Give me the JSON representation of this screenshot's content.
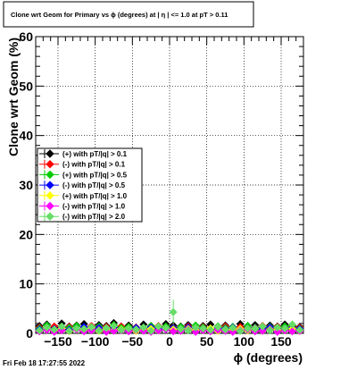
{
  "chart_data": {
    "type": "scatter",
    "title": "Clone wrt Geom for Primary vs ϕ (degrees) at | η | <= 1.0 at pT > 0.11",
    "xlabel": "ϕ (degrees)",
    "ylabel": "Clone wrt Geom (%)",
    "xlim": [
      -180,
      180
    ],
    "ylim": [
      0,
      60
    ],
    "x_ticks": [
      -150,
      -100,
      -50,
      0,
      50,
      100,
      150
    ],
    "y_ticks": [
      0,
      10,
      20,
      30,
      40,
      50,
      60
    ],
    "grid": true,
    "legend_placement": "center-left",
    "series": [
      {
        "name": "(+) with pT/|q| > 0.1",
        "color": "#000000",
        "marker": "diamond",
        "x": [
          -175,
          -165,
          -155,
          -145,
          -135,
          -125,
          -115,
          -105,
          -95,
          -85,
          -75,
          -65,
          -55,
          -45,
          -35,
          -25,
          -15,
          -5,
          5,
          15,
          25,
          35,
          45,
          55,
          65,
          75,
          85,
          95,
          105,
          115,
          125,
          135,
          145,
          155,
          165,
          175
        ],
        "y": [
          1.5,
          1.8,
          1.2,
          2.0,
          1.4,
          1.6,
          1.9,
          1.3,
          1.7,
          1.5,
          2.1,
          1.4,
          1.6,
          1.2,
          1.8,
          1.5,
          1.3,
          1.9,
          1.6,
          1.4,
          1.7,
          1.2,
          1.5,
          1.8,
          1.4,
          1.6,
          1.3,
          1.9,
          1.5,
          1.7,
          1.2,
          1.6,
          1.4,
          1.8,
          1.5,
          1.3
        ]
      },
      {
        "name": "(-) with pT/|q| > 0.1",
        "color": "#ff0000",
        "marker": "diamond",
        "x": [
          -175,
          -165,
          -155,
          -145,
          -135,
          -125,
          -115,
          -105,
          -95,
          -85,
          -75,
          -65,
          -55,
          -45,
          -35,
          -25,
          -15,
          -5,
          5,
          15,
          25,
          35,
          45,
          55,
          65,
          75,
          85,
          95,
          105,
          115,
          125,
          135,
          145,
          155,
          165,
          175
        ],
        "y": [
          1.2,
          1.0,
          1.4,
          1.1,
          1.3,
          0.9,
          1.2,
          1.5,
          1.0,
          1.3,
          1.1,
          1.4,
          0.9,
          1.2,
          1.0,
          1.3,
          1.5,
          1.1,
          1.2,
          1.0,
          1.4,
          1.1,
          1.3,
          0.9,
          1.2,
          1.4,
          1.0,
          1.3,
          1.1,
          1.2,
          1.5,
          1.0,
          1.3,
          1.1,
          1.4,
          1.2
        ]
      },
      {
        "name": "(+) with pT/|q| > 0.5",
        "color": "#00cc00",
        "marker": "diamond",
        "x": [
          -175,
          -165,
          -155,
          -145,
          -135,
          -125,
          -115,
          -105,
          -95,
          -85,
          -75,
          -65,
          -55,
          -45,
          -35,
          -25,
          -15,
          -5,
          5,
          15,
          25,
          35,
          45,
          55,
          65,
          75,
          85,
          95,
          105,
          115,
          125,
          135,
          145,
          155,
          165,
          175
        ],
        "y": [
          1.0,
          1.6,
          0.8,
          1.3,
          1.1,
          1.5,
          0.9,
          1.2,
          1.4,
          1.0,
          1.7,
          1.1,
          1.3,
          0.8,
          1.2,
          1.5,
          1.0,
          1.4,
          1.1,
          1.3,
          0.9,
          1.6,
          1.2,
          1.0,
          1.4,
          1.1,
          1.3,
          0.9,
          1.5,
          1.2,
          1.0,
          1.3,
          1.1,
          1.4,
          1.6,
          1.0
        ]
      },
      {
        "name": "(-) with pT/|q| > 0.5",
        "color": "#0000ff",
        "marker": "diamond",
        "x": [
          -175,
          -165,
          -155,
          -145,
          -135,
          -125,
          -115,
          -105,
          -95,
          -85,
          -75,
          -65,
          -55,
          -45,
          -35,
          -25,
          -15,
          -5,
          5,
          15,
          25,
          35,
          45,
          55,
          65,
          75,
          85,
          95,
          105,
          115,
          125,
          135,
          145,
          155,
          165,
          175
        ],
        "y": [
          0.8,
          1.1,
          0.9,
          1.2,
          0.7,
          1.0,
          1.3,
          0.8,
          1.1,
          0.9,
          1.2,
          0.7,
          1.0,
          1.1,
          0.8,
          1.2,
          0.9,
          1.0,
          1.1,
          0.8,
          1.2,
          0.9,
          1.0,
          0.7,
          1.1,
          0.9,
          1.2,
          0.8,
          1.0,
          1.1,
          0.9,
          1.2,
          0.8,
          1.0,
          1.1,
          0.9
        ]
      },
      {
        "name": "(+) with pT/|q| > 1.0",
        "color": "#ffff00",
        "marker": "diamond",
        "x": [
          -175,
          -165,
          -155,
          -145,
          -135,
          -125,
          -115,
          -105,
          -95,
          -85,
          -75,
          -65,
          -55,
          -45,
          -35,
          -25,
          -15,
          -5,
          5,
          15,
          25,
          35,
          45,
          55,
          65,
          75,
          85,
          95,
          105,
          115,
          125,
          135,
          145,
          155,
          165,
          175
        ],
        "y": [
          0.5,
          0.9,
          0.6,
          1.0,
          0.4,
          0.8,
          0.7,
          1.1,
          0.5,
          0.9,
          0.6,
          0.8,
          1.0,
          0.5,
          0.7,
          0.9,
          0.6,
          1.0,
          0.8,
          0.5,
          0.9,
          0.7,
          0.6,
          1.0,
          0.5,
          0.8,
          0.7,
          0.9,
          0.6,
          1.0,
          0.5,
          0.8,
          0.7,
          0.6,
          0.9,
          0.5
        ]
      },
      {
        "name": "(-) with pT/|q| > 1.0",
        "color": "#ff00ff",
        "marker": "diamond",
        "x": [
          -175,
          -165,
          -155,
          -145,
          -135,
          -125,
          -115,
          -105,
          -95,
          -85,
          -75,
          -65,
          -55,
          -45,
          -35,
          -25,
          -15,
          -5,
          5,
          15,
          25,
          35,
          45,
          55,
          65,
          75,
          85,
          95,
          105,
          115,
          125,
          135,
          145,
          155,
          165,
          175
        ],
        "y": [
          0.4,
          0.7,
          0.3,
          0.6,
          0.5,
          0.8,
          0.4,
          0.6,
          0.7,
          0.3,
          0.5,
          0.6,
          0.4,
          0.7,
          0.5,
          0.3,
          0.6,
          0.8,
          0.4,
          0.5,
          0.7,
          0.3,
          0.6,
          0.4,
          0.7,
          0.5,
          0.3,
          0.6,
          0.8,
          0.4,
          0.5,
          0.7,
          0.3,
          0.6,
          0.4,
          0.5
        ]
      },
      {
        "name": "(-) with pT/|q| > 2.0",
        "color": "#66dd66",
        "marker": "diamond",
        "x": [
          -175,
          -165,
          -155,
          -145,
          -135,
          -125,
          -115,
          -105,
          -95,
          -85,
          -75,
          -65,
          -55,
          -45,
          -35,
          -25,
          -15,
          -5,
          5,
          15,
          25,
          35,
          45,
          55,
          65,
          75,
          85,
          95,
          105,
          115,
          125,
          135,
          145,
          155,
          165,
          175
        ],
        "y": [
          0.6,
          1.2,
          0.8,
          1.4,
          0.5,
          1.0,
          0.9,
          1.3,
          0.6,
          1.1,
          1.5,
          0.7,
          1.0,
          0.8,
          1.2,
          0.5,
          1.4,
          1.1,
          4.3,
          0.9,
          0.6,
          1.2,
          1.0,
          0.7,
          1.3,
          0.8,
          1.1,
          0.5,
          1.0,
          0.9,
          1.4,
          0.6,
          1.2,
          1.0,
          1.8,
          0.7
        ]
      }
    ]
  },
  "footer": {
    "timestamp": "Fri Feb 18 17:27:55 2022"
  }
}
